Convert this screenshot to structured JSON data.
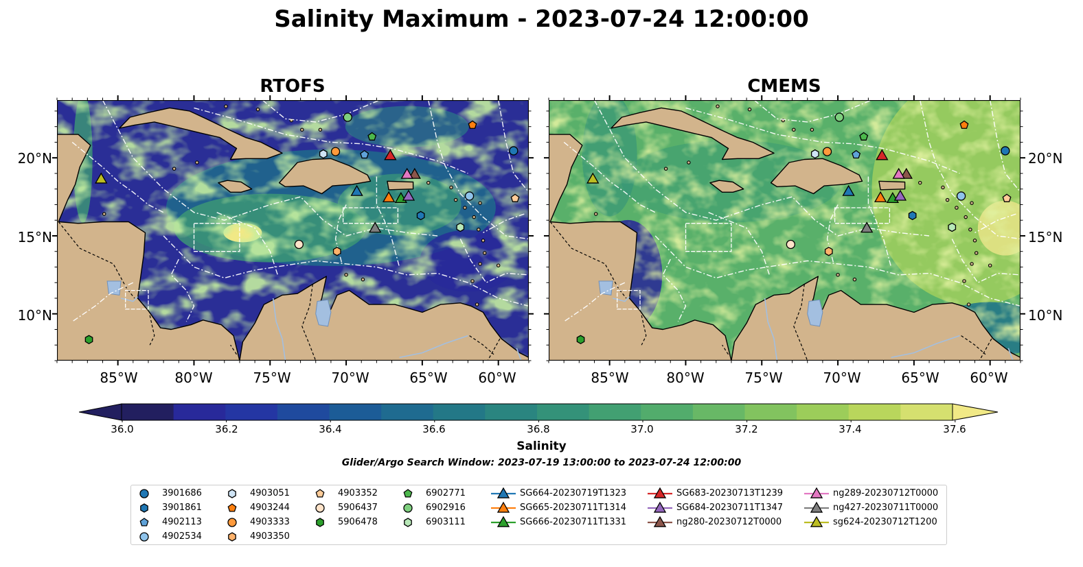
{
  "title": "Salinity Maximum - 2023-07-24 12:00:00",
  "panels": [
    {
      "title": "RTOFS",
      "style": "rtofs"
    },
    {
      "title": "CMEMS",
      "style": "cmems"
    }
  ],
  "lat_ticks": [
    "20°N",
    "15°N",
    "10°N"
  ],
  "lon_ticks": [
    "85°W",
    "80°W",
    "75°W",
    "70°W",
    "65°W",
    "60°W"
  ],
  "colorbar": {
    "label": "Salinity",
    "ticks": [
      "36.0",
      "36.2",
      "36.4",
      "36.6",
      "36.8",
      "37.0",
      "37.2",
      "37.4",
      "37.6"
    ],
    "colors": [
      "#221f5f",
      "#28299a",
      "#2436a3",
      "#1f4a9e",
      "#1c5c97",
      "#1f6b90",
      "#237887",
      "#2a8580",
      "#349279",
      "#42a072",
      "#52ac6c",
      "#68b866",
      "#82c35f",
      "#9ccd5a",
      "#b9d65c",
      "#d5e06f",
      "#f1e986"
    ]
  },
  "search_window": "Glider/Argo Search Window: 2023-07-19 13:00:00 to 2023-07-24 12:00:00",
  "legend": [
    {
      "label": "3901686",
      "marker": "circle",
      "color": "#1f77b4",
      "kind": "argo"
    },
    {
      "label": "3901861",
      "marker": "hexagon",
      "color": "#1f77b4",
      "kind": "argo"
    },
    {
      "label": "4902113",
      "marker": "pentagon",
      "color": "#5fa2d8",
      "kind": "argo"
    },
    {
      "label": "4902534",
      "marker": "circle",
      "color": "#8fc3ea",
      "kind": "argo"
    },
    {
      "label": "4903051",
      "marker": "hexagon",
      "color": "#cfe4f5",
      "kind": "argo"
    },
    {
      "label": "4903244",
      "marker": "pentagon",
      "color": "#ff7f0e",
      "kind": "argo"
    },
    {
      "label": "4903333",
      "marker": "circle",
      "color": "#ff9a3c",
      "kind": "argo"
    },
    {
      "label": "4903350",
      "marker": "hexagon",
      "color": "#ffb26b",
      "kind": "argo"
    },
    {
      "label": "4903352",
      "marker": "pentagon",
      "color": "#ffcc99",
      "kind": "argo"
    },
    {
      "label": "5906437",
      "marker": "circle",
      "color": "#ffe3c9",
      "kind": "argo"
    },
    {
      "label": "5906478",
      "marker": "hexagon",
      "color": "#2ca02c",
      "kind": "argo"
    },
    {
      "label": "6902771",
      "marker": "pentagon",
      "color": "#4cb84c",
      "kind": "argo"
    },
    {
      "label": "6902916",
      "marker": "circle",
      "color": "#7fd07f",
      "kind": "argo"
    },
    {
      "label": "6903111",
      "marker": "hexagon",
      "color": "#b8e8b8",
      "kind": "argo"
    },
    {
      "label": "SG664-20230719T1323",
      "marker": "triangle",
      "color": "#1f77b4",
      "kind": "glider"
    },
    {
      "label": "SG665-20230711T1314",
      "marker": "triangle",
      "color": "#ff7f0e",
      "kind": "glider"
    },
    {
      "label": "SG666-20230711T1331",
      "marker": "triangle",
      "color": "#2ca02c",
      "kind": "glider"
    },
    {
      "label": "SG683-20230713T1239",
      "marker": "triangle",
      "color": "#d62728",
      "kind": "glider"
    },
    {
      "label": "SG684-20230711T1347",
      "marker": "triangle",
      "color": "#9467bd",
      "kind": "glider"
    },
    {
      "label": "ng280-20230712T0000",
      "marker": "triangle",
      "color": "#8c564b",
      "kind": "glider"
    },
    {
      "label": "ng289-20230712T0000",
      "marker": "triangle",
      "color": "#e377c2",
      "kind": "glider"
    },
    {
      "label": "ng427-20230711T0000",
      "marker": "triangle",
      "color": "#7f7f7f",
      "kind": "glider"
    },
    {
      "label": "sg624-20230712T1200",
      "marker": "triangle",
      "color": "#bcbd22",
      "kind": "glider"
    }
  ],
  "platform_positions": [
    {
      "label": "3901686",
      "lon": -59,
      "lat": 20.45
    },
    {
      "label": "3901861",
      "lon": -65.1,
      "lat": 16.3
    },
    {
      "label": "4902113",
      "lon": -68.8,
      "lat": 20.2
    },
    {
      "label": "4902534",
      "lon": -61.9,
      "lat": 17.55
    },
    {
      "label": "4903051",
      "lon": -71.5,
      "lat": 20.25
    },
    {
      "label": "4903244",
      "lon": -61.7,
      "lat": 22.1
    },
    {
      "label": "4903333",
      "lon": -70.7,
      "lat": 20.4
    },
    {
      "label": "4903350",
      "lon": -70.6,
      "lat": 14.0
    },
    {
      "label": "4903352",
      "lon": -58.9,
      "lat": 17.4
    },
    {
      "label": "5906437",
      "lon": -73.1,
      "lat": 14.45
    },
    {
      "label": "5906478",
      "lon": -86.9,
      "lat": 8.35
    },
    {
      "label": "6902771",
      "lon": -68.3,
      "lat": 21.35
    },
    {
      "label": "6902916",
      "lon": -69.9,
      "lat": 22.6
    },
    {
      "label": "6903111",
      "lon": -62.5,
      "lat": 15.55
    },
    {
      "label": "SG664-20230719T1323",
      "lon": -69.3,
      "lat": 17.85
    },
    {
      "label": "SG665-20230711T1314",
      "lon": -67.2,
      "lat": 17.45
    },
    {
      "label": "SG666-20230711T1331",
      "lon": -66.4,
      "lat": 17.4
    },
    {
      "label": "SG683-20230713T1239",
      "lon": -67.1,
      "lat": 20.15
    },
    {
      "label": "SG684-20230711T1347",
      "lon": -65.9,
      "lat": 17.55
    },
    {
      "label": "ng280-20230712T0000",
      "lon": -65.5,
      "lat": 18.95
    },
    {
      "label": "ng289-20230712T0000",
      "lon": -66.0,
      "lat": 18.95
    },
    {
      "label": "ng427-20230711T0000",
      "lon": -68.1,
      "lat": 15.5
    },
    {
      "label": "sg624-20230712T1200",
      "lon": -86.1,
      "lat": 18.65
    }
  ]
}
